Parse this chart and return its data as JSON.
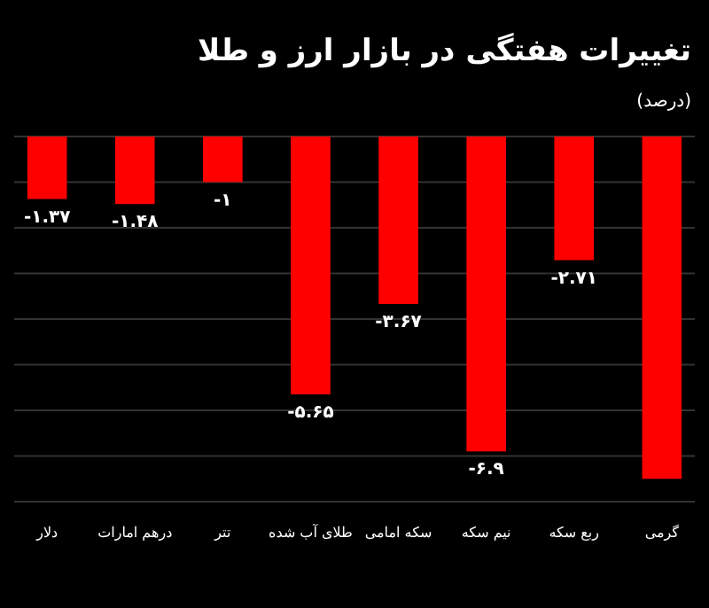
{
  "chart_data": {
    "type": "bar",
    "title": "تغییرات هفتگی در بازار ارز و طلا",
    "subtitle": "(درصد)",
    "categories": [
      "دلار",
      "درهم امارات",
      "تتر",
      "طلای آب شده",
      "سکه امامی",
      "نیم سکه",
      "ربع سکه",
      "گرمی"
    ],
    "values": [
      -1.37,
      -1.48,
      -1,
      -5.65,
      -3.67,
      -6.9,
      -2.71,
      -7.5
    ],
    "value_labels": [
      "-۱.۳۷",
      "-۱.۴۸",
      "-۱",
      "-۵.۶۵",
      "-۳.۶۷",
      "-۶.۹",
      "-۲.۷۱",
      null
    ],
    "color": "#ff0000",
    "ylim": [
      -8,
      0
    ],
    "yticks": [
      {
        "value": 0,
        "label": null
      },
      {
        "value": -1,
        "label": null
      },
      {
        "value": -2,
        "label": null
      },
      {
        "value": -3,
        "label": null
      },
      {
        "value": -4,
        "label": null
      },
      {
        "value": -5,
        "label": null
      },
      {
        "value": -6,
        "label": null
      },
      {
        "value": -7,
        "label": null
      },
      {
        "value": -8,
        "label": null
      }
    ],
    "grid": "y",
    "tick_labels": "x"
  }
}
